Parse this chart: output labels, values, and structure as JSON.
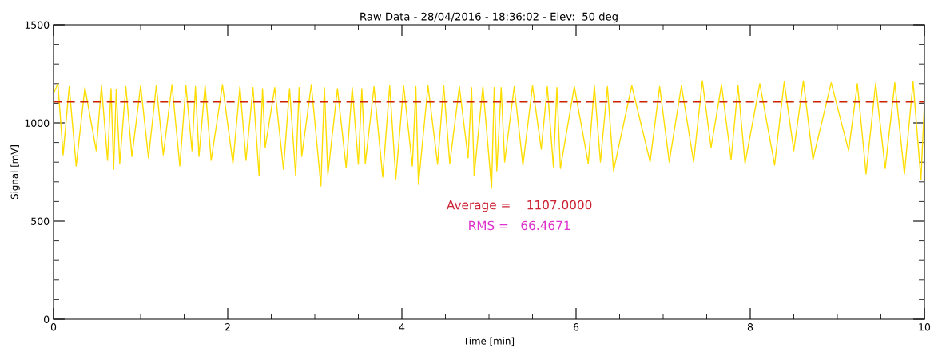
{
  "chart_data": {
    "type": "line",
    "title": "Raw Data - 28/04/2016 - 18:36:02 - Elev:  50 deg",
    "xlabel": "Time [min]",
    "ylabel": "Signal [mV]",
    "xlim": [
      0,
      10
    ],
    "xticks": [
      0,
      2,
      4,
      6,
      8,
      10
    ],
    "ylim": [
      0,
      1500
    ],
    "yticks": [
      0,
      500,
      1000,
      1500
    ],
    "grid": false,
    "legend": false,
    "marker": "none",
    "line_style": "solid",
    "series": [
      {
        "color": "#ffdd00",
        "x": [
          0,
          0.05,
          0.11,
          0.18,
          0.26,
          0.36,
          0.49,
          0.55,
          0.62,
          0.66,
          0.69,
          0.72,
          0.76,
          0.83,
          0.9,
          1.0,
          1.09,
          1.18,
          1.26,
          1.36,
          1.45,
          1.52,
          1.59,
          1.63,
          1.67,
          1.74,
          1.81,
          1.94,
          2.06,
          2.14,
          2.21,
          2.29,
          2.36,
          2.4,
          2.43,
          2.54,
          2.64,
          2.71,
          2.78,
          2.82,
          2.85,
          2.96,
          3.07,
          3.11,
          3.15,
          3.26,
          3.36,
          3.43,
          3.5,
          3.54,
          3.58,
          3.68,
          3.78,
          3.86,
          3.93,
          4.02,
          4.12,
          4.16,
          4.19,
          4.3,
          4.41,
          4.48,
          4.55,
          4.66,
          4.76,
          4.8,
          4.83,
          4.93,
          5.03,
          5.06,
          5.09,
          5.14,
          5.18,
          5.29,
          5.39,
          5.5,
          5.6,
          5.67,
          5.74,
          5.78,
          5.82,
          5.98,
          6.14,
          6.21,
          6.28,
          6.36,
          6.43,
          6.64,
          6.85,
          6.96,
          7.07,
          7.21,
          7.35,
          7.45,
          7.55,
          7.67,
          7.78,
          7.86,
          7.94,
          8.11,
          8.28,
          8.39,
          8.5,
          8.61,
          8.72,
          8.93,
          9.13,
          9.23,
          9.33,
          9.44,
          9.55,
          9.66,
          9.77,
          9.87,
          9.96,
          10
        ],
        "values": [
          1150,
          1200,
          837,
          1185,
          780,
          1180,
          858,
          1190,
          809,
          1175,
          764,
          1170,
          793,
          1185,
          829,
          1190,
          821,
          1190,
          837,
          1195,
          780,
          1190,
          858,
          1185,
          829,
          1190,
          809,
          1195,
          793,
          1185,
          809,
          1180,
          732,
          1175,
          874,
          1180,
          764,
          1175,
          732,
          1180,
          829,
          1195,
          679,
          1180,
          736,
          1175,
          772,
          1180,
          789,
          1175,
          793,
          1185,
          724,
          1190,
          715,
          1190,
          780,
          1185,
          687,
          1190,
          789,
          1190,
          793,
          1185,
          821,
          1180,
          732,
          1185,
          667,
          1180,
          756,
          1180,
          801,
          1185,
          785,
          1190,
          866,
          1185,
          776,
          1180,
          768,
          1185,
          793,
          1190,
          801,
          1185,
          756,
          1190,
          801,
          1185,
          801,
          1190,
          801,
          1215,
          874,
          1195,
          813,
          1190,
          793,
          1200,
          785,
          1210,
          858,
          1215,
          813,
          1205,
          858,
          1200,
          740,
          1200,
          768,
          1205,
          740,
          1210,
          711,
          1100
        ]
      }
    ],
    "ref_lines": [
      {
        "axis": "y",
        "value": 1107,
        "color": "#cc2200",
        "line_style": "dashed"
      }
    ],
    "annotations": [
      "Average =    1107.0000",
      "RMS =   66.4671"
    ]
  }
}
